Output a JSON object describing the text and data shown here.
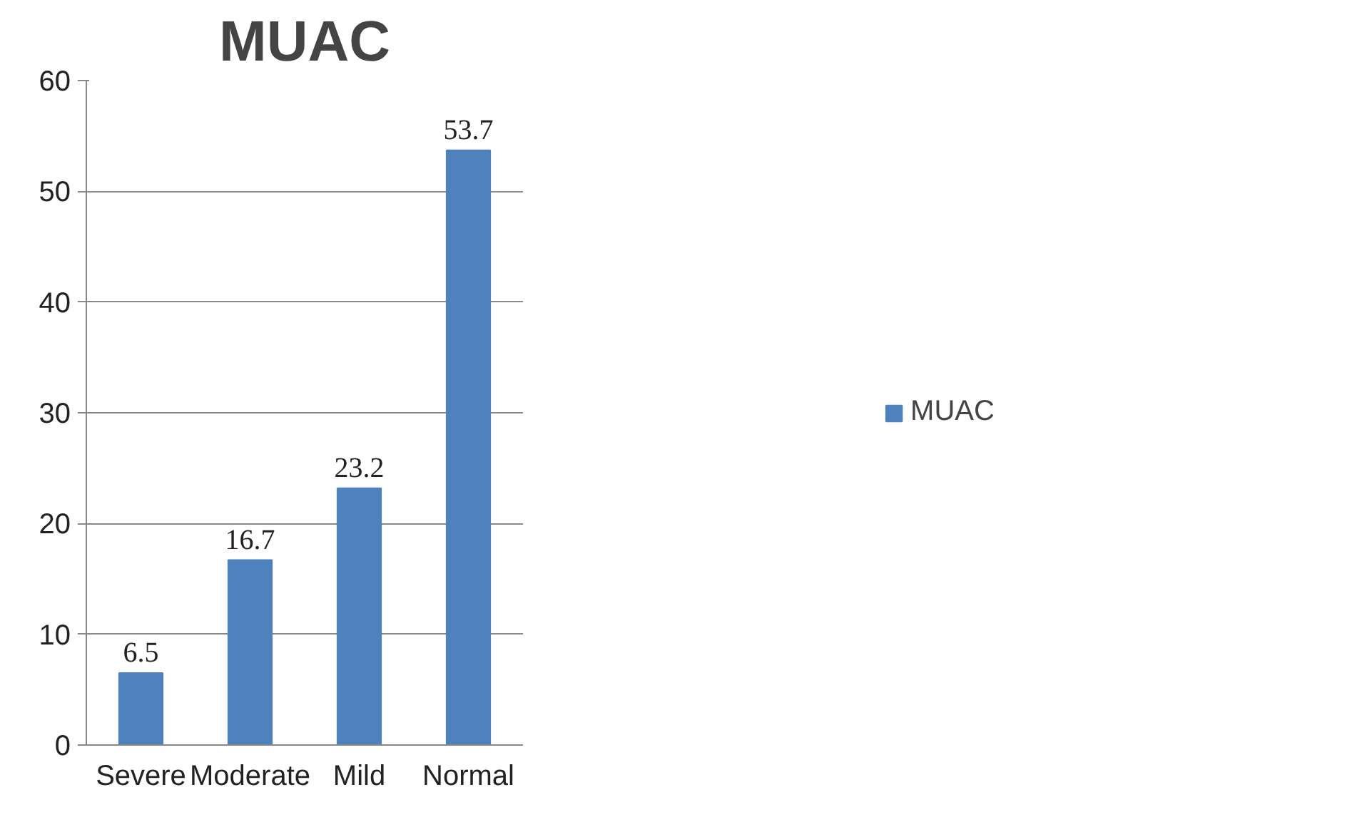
{
  "chart_data": {
    "type": "bar",
    "title": "MUAC",
    "categories": [
      "Severe",
      "Moderate",
      "Mild",
      "Normal"
    ],
    "series": [
      {
        "name": "MUAC",
        "color": "#4f81bd",
        "values": [
          6.5,
          16.7,
          23.2,
          53.7
        ]
      }
    ],
    "ylim": [
      0,
      60
    ],
    "yticks": [
      0,
      10,
      20,
      30,
      40,
      50,
      60
    ],
    "grid": "y",
    "legend": "right",
    "data_labels": true
  }
}
